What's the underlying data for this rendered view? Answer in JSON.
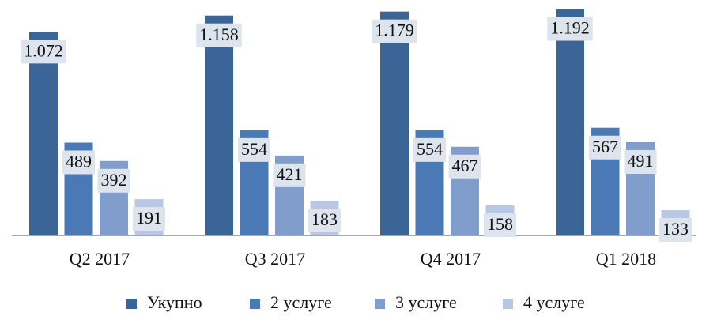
{
  "chart_data": {
    "type": "bar",
    "categories": [
      "Q2 2017",
      "Q3 2017",
      "Q4 2017",
      "Q1 2018"
    ],
    "series": [
      {
        "name": "Укупно",
        "color": "#3b6597",
        "values": [
          1072,
          1158,
          1179,
          1192
        ],
        "value_labels": [
          "1.072",
          "1.158",
          "1.179",
          "1.192"
        ]
      },
      {
        "name": "2 услуге",
        "color": "#4a79b5",
        "values": [
          489,
          554,
          554,
          567
        ]
      },
      {
        "name": "3 услуге",
        "color": "#809dcc",
        "values": [
          392,
          421,
          467,
          491
        ]
      },
      {
        "name": "4 услуге",
        "color": "#b7c7e4",
        "values": [
          191,
          183,
          158,
          133
        ]
      }
    ],
    "ylim": [
      0,
      1240
    ],
    "legend": "bottom"
  }
}
